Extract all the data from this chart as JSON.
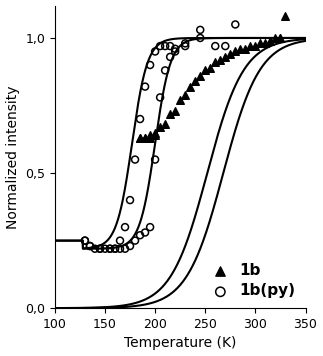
{
  "xlabel": "Temperature (K)",
  "ylabel": "Normalized intensity",
  "xlim": [
    100,
    350
  ],
  "ylim": [
    0.0,
    1.12
  ],
  "yticks": [
    0.0,
    0.5,
    1.0
  ],
  "ytick_labels": [
    "0,0",
    "0,5",
    "1,0"
  ],
  "xticks": [
    100,
    150,
    200,
    250,
    300,
    350
  ],
  "tri_x": [
    185,
    190,
    195,
    200,
    205,
    215,
    225,
    235,
    245,
    255,
    265,
    275,
    285,
    295,
    305,
    315,
    325,
    330
  ],
  "tri_y": [
    0.63,
    0.63,
    0.64,
    0.65,
    0.67,
    0.72,
    0.77,
    0.82,
    0.86,
    0.89,
    0.92,
    0.94,
    0.96,
    0.97,
    0.98,
    0.99,
    1.0,
    1.08
  ],
  "tri2_x": [
    185,
    190,
    195,
    200,
    210,
    220,
    230,
    240,
    250,
    260,
    270,
    280,
    290,
    300,
    310,
    320,
    325
  ],
  "tri2_y": [
    0.63,
    0.63,
    0.63,
    0.64,
    0.68,
    0.73,
    0.79,
    0.84,
    0.88,
    0.91,
    0.93,
    0.95,
    0.96,
    0.97,
    0.98,
    1.0,
    1.0
  ],
  "circ_x": [
    130,
    135,
    145,
    155,
    160,
    165,
    170,
    175,
    180,
    185,
    190,
    195,
    200,
    205,
    210,
    215,
    220,
    230,
    245,
    260,
    270,
    280
  ],
  "circ_y": [
    0.25,
    0.23,
    0.22,
    0.22,
    0.22,
    0.25,
    0.3,
    0.4,
    0.55,
    0.7,
    0.82,
    0.9,
    0.95,
    0.97,
    0.97,
    0.97,
    0.95,
    0.97,
    1.03,
    0.97,
    0.97,
    1.05
  ],
  "circ2_x": [
    130,
    135,
    140,
    145,
    150,
    155,
    160,
    165,
    170,
    175,
    180,
    185,
    190,
    195,
    200,
    205,
    210,
    215,
    220,
    230,
    245
  ],
  "circ2_y": [
    0.25,
    0.23,
    0.22,
    0.22,
    0.22,
    0.22,
    0.22,
    0.22,
    0.22,
    0.23,
    0.25,
    0.27,
    0.28,
    0.3,
    0.55,
    0.78,
    0.88,
    0.93,
    0.96,
    0.98,
    1.0
  ],
  "curve_color": "#000000",
  "marker_color": "#000000",
  "linewidth": 1.5
}
